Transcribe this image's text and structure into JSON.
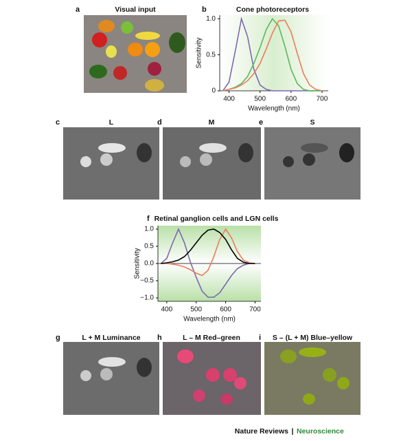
{
  "panels": [
    {
      "letter": "a",
      "title": "Visual input"
    },
    {
      "letter": "b",
      "title": "Cone photoreceptors"
    },
    {
      "letter": "c",
      "title": "L"
    },
    {
      "letter": "d",
      "title": "M"
    },
    {
      "letter": "e",
      "title": "S"
    },
    {
      "letter": "f",
      "title": "Retinal ganglion cells and LGN cells"
    },
    {
      "letter": "g",
      "title": "L + M Luminance"
    },
    {
      "letter": "h",
      "title": "L – M Red–green"
    },
    {
      "letter": "i",
      "title": "S – (L + M) Blue–yellow"
    }
  ],
  "chart_data": [
    {
      "type": "line",
      "xlabel": "Wavelength (nm)",
      "ylabel": "Sensitivity",
      "x": [
        380,
        400,
        420,
        440,
        460,
        480,
        500,
        520,
        540,
        560,
        580,
        600,
        620,
        640,
        660,
        680,
        700
      ],
      "xlim": [
        370,
        720
      ],
      "xticks": [
        400,
        500,
        600,
        700
      ],
      "ylim": [
        0,
        1.05
      ],
      "yticks": [
        0,
        0.5,
        {
          "value": 1,
          "label": "1.0"
        }
      ],
      "series": [
        {
          "color": "#7b68b0",
          "values": [
            0,
            0.12,
            0.55,
            1.0,
            0.75,
            0.3,
            0.08,
            0.02,
            0,
            0,
            0,
            0,
            0,
            0,
            0,
            0,
            0
          ]
        },
        {
          "color": "#5cb85c",
          "values": [
            0,
            0.02,
            0.05,
            0.1,
            0.2,
            0.38,
            0.6,
            0.85,
            1.0,
            0.9,
            0.62,
            0.3,
            0.1,
            0.02,
            0,
            0,
            0
          ]
        },
        {
          "color": "#f07a5a",
          "values": [
            0,
            0.02,
            0.04,
            0.08,
            0.14,
            0.24,
            0.38,
            0.58,
            0.8,
            0.97,
            0.98,
            0.82,
            0.52,
            0.24,
            0.08,
            0.02,
            0
          ]
        }
      ]
    },
    {
      "type": "line",
      "xlabel": "Wavelength (nm)",
      "ylabel": "Sensitivity",
      "x": [
        380,
        400,
        420,
        440,
        460,
        480,
        500,
        520,
        540,
        560,
        580,
        600,
        620,
        640,
        660,
        680,
        700
      ],
      "xlim": [
        370,
        720
      ],
      "xticks": [
        400,
        500,
        600,
        700
      ],
      "ylim": [
        -1.1,
        1.1
      ],
      "yticks": [
        {
          "value": 1,
          "label": "1.0"
        },
        0.5,
        {
          "value": 0,
          "label": "0.0"
        },
        {
          "value": -0.5,
          "label": "−0.5"
        },
        {
          "value": -1,
          "label": "−1.0"
        }
      ],
      "series": [
        {
          "color": "#7b68b0",
          "values": [
            0,
            0.15,
            0.6,
            1.0,
            0.6,
            0.05,
            -0.4,
            -0.8,
            -0.98,
            -0.98,
            -0.85,
            -0.6,
            -0.35,
            -0.15,
            -0.05,
            0,
            0
          ]
        },
        {
          "color": "#f07a5a",
          "values": [
            0,
            0,
            -0.02,
            -0.05,
            -0.1,
            -0.18,
            -0.28,
            -0.35,
            -0.2,
            0.2,
            0.7,
            1.0,
            0.75,
            0.35,
            0.1,
            0.02,
            0
          ]
        },
        {
          "color": "#000000",
          "values": [
            0,
            0.02,
            0.05,
            0.1,
            0.2,
            0.38,
            0.6,
            0.82,
            0.97,
            1.0,
            0.9,
            0.7,
            0.4,
            0.15,
            0.04,
            0,
            0
          ]
        }
      ]
    }
  ],
  "footer": {
    "journal": "Nature Reviews",
    "separator": "|",
    "section": "Neuroscience"
  }
}
